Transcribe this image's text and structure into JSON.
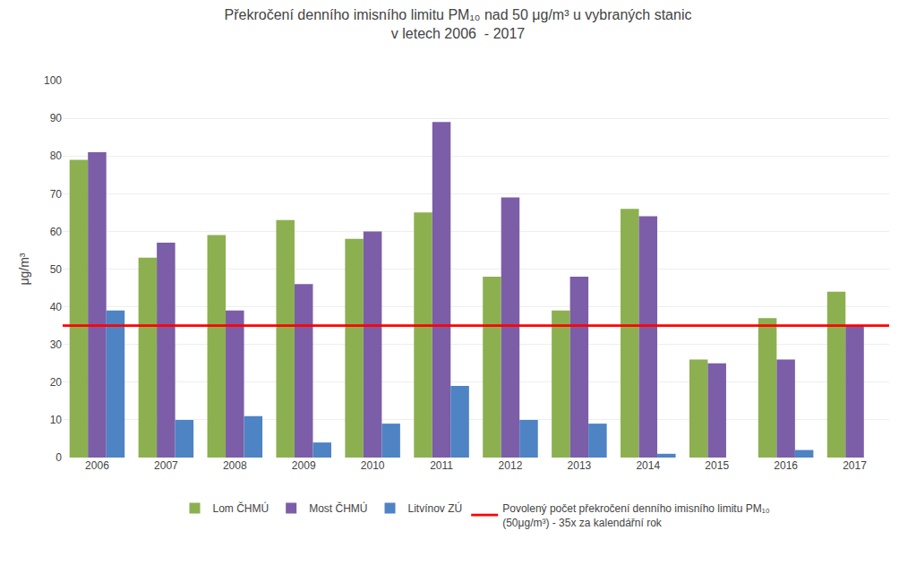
{
  "chart_data": {
    "type": "bar",
    "title": "Překročení denního imisního limitu PM₁₀ nad 50 μg/m³ u vybraných stanic\nv letech 2006  - 2017",
    "y_label": "μg/m³",
    "categories": [
      2006,
      2007,
      2008,
      2009,
      2010,
      2011,
      2012,
      2013,
      2014,
      2015,
      2016,
      2017
    ],
    "series": [
      {
        "name": "Lom ČHMÚ",
        "color": "#8CB050",
        "values": [
          79,
          53,
          59,
          63,
          58,
          65,
          48,
          39,
          66,
          26,
          37,
          44
        ]
      },
      {
        "name": "Most ČHMÚ",
        "color": "#7B5EA7",
        "values": [
          81,
          57,
          39,
          46,
          60,
          89,
          69,
          48,
          64,
          25,
          26,
          35
        ]
      },
      {
        "name": "Litvínov ZÚ",
        "color": "#4E83C4",
        "values": [
          39,
          10,
          11,
          4,
          9,
          19,
          10,
          9,
          1,
          0,
          2,
          0
        ]
      }
    ],
    "reference_lines": [
      {
        "name": "Povolený počet překročení denního imisního limitu PM₁₀\n(50μg/m³) - 35x za kalendářní rok",
        "value": 35,
        "color": "#FF0000"
      }
    ],
    "ylim": [
      0,
      100
    ],
    "yticks": [
      0,
      10,
      20,
      30,
      40,
      50,
      60,
      70,
      80,
      90,
      100
    ],
    "grid": true,
    "legend": "bottom"
  }
}
